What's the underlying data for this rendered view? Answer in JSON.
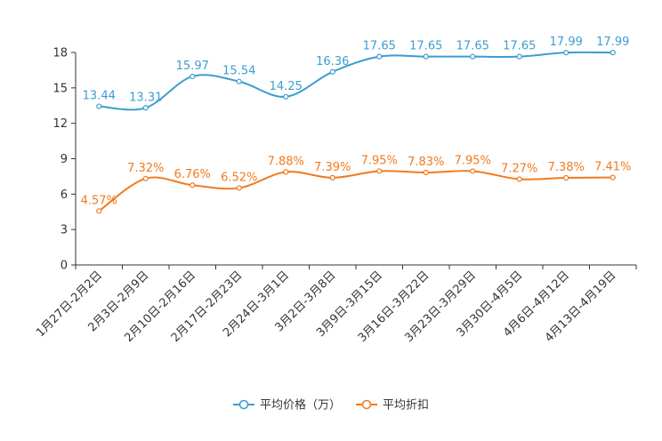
{
  "chart_data": {
    "type": "line",
    "categories": [
      "1月27日-2月2日",
      "2月3日-2月9日",
      "2月10日-2月16日",
      "2月17日-2月23日",
      "2月24日-3月1日",
      "3月2日-3月8日",
      "3月9日-3月15日",
      "3月16日-3月22日",
      "3月23日-3月29日",
      "3月30日-4月5日",
      "4月6日-4月12日",
      "4月13日-4月19日"
    ],
    "ylim": [
      0,
      18
    ],
    "yticks": [
      "0",
      "3",
      "6",
      "9",
      "12",
      "15",
      "18"
    ],
    "series": [
      {
        "name": "平均价格（万）",
        "color": "#3c9dd0",
        "values": [
          13.44,
          13.31,
          15.97,
          15.54,
          14.25,
          16.36,
          17.65,
          17.65,
          17.65,
          17.65,
          17.99,
          17.99
        ],
        "labels": [
          "13.44",
          "13.31",
          "15.97",
          "15.54",
          "14.25",
          "16.36",
          "17.65",
          "17.65",
          "17.65",
          "17.65",
          "17.99",
          "17.99"
        ]
      },
      {
        "name": "平均折扣",
        "color": "#f07a1f",
        "values": [
          4.57,
          7.32,
          6.76,
          6.52,
          7.88,
          7.39,
          7.95,
          7.83,
          7.95,
          7.27,
          7.38,
          7.41
        ],
        "labels": [
          "4.57%",
          "7.32%",
          "6.76%",
          "6.52%",
          "7.88%",
          "7.39%",
          "7.95%",
          "7.83%",
          "7.95%",
          "7.27%",
          "7.38%",
          "7.41%"
        ]
      }
    ],
    "legend_position": "bottom-center"
  }
}
